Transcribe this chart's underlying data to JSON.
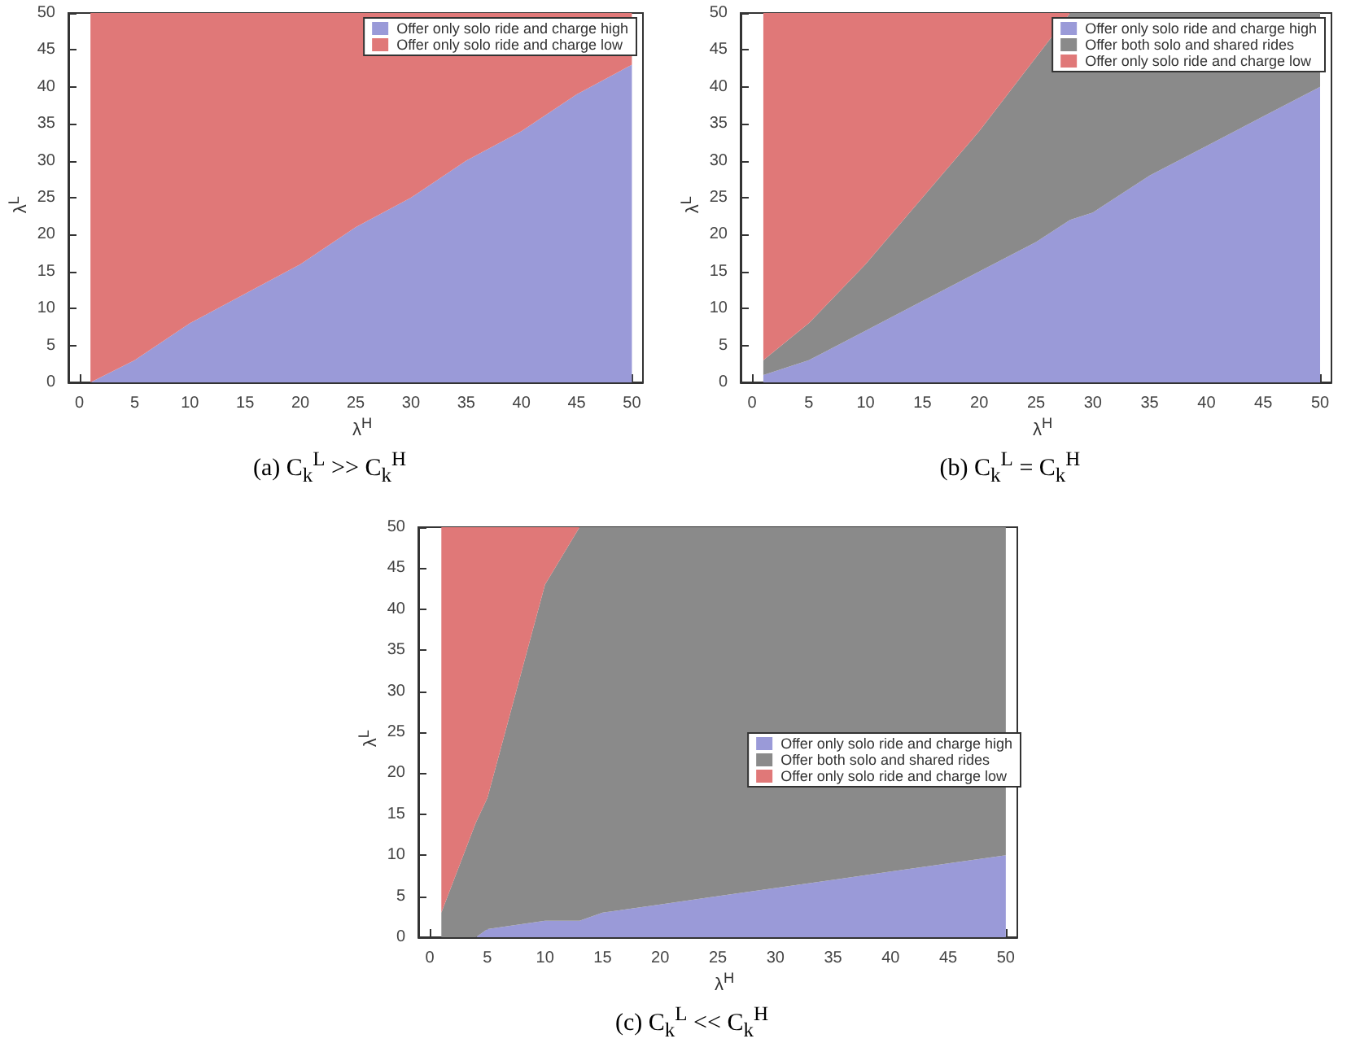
{
  "chart_data": [
    {
      "type": "area",
      "stacked": true,
      "title": "(a) C$_{k}$$^{L}$ >> C$_{k}$$^{H}$",
      "xlabel": "λ$^{H}$",
      "ylabel": "λ$^{L}$",
      "legend": "top right",
      "grid": false,
      "x": [
        1,
        5,
        10,
        15,
        20,
        25,
        30,
        35,
        40,
        45,
        50
      ],
      "xlim": [
        -1,
        51
      ],
      "ylim": [
        0,
        50
      ],
      "xticks": [
        0,
        5,
        10,
        15,
        20,
        25,
        30,
        35,
        40,
        45,
        50
      ],
      "yticks": [
        0,
        5,
        10,
        15,
        20,
        25,
        30,
        35,
        40,
        45,
        50
      ],
      "series": [
        {
          "name": "Offer only solo ride and charge high",
          "color": "#9a9ad8",
          "values": [
            0,
            3,
            8,
            12,
            16,
            21,
            25,
            30,
            34,
            39,
            43
          ]
        },
        {
          "name": "Offer only solo ride and charge low",
          "color": "#e07878",
          "values": [
            50,
            47,
            42,
            38,
            34,
            29,
            25,
            20,
            16,
            11,
            7
          ]
        }
      ]
    },
    {
      "type": "area",
      "stacked": true,
      "title": "(b) C$_{k}$$^{L}$ = C$_{k}$$^{H}$",
      "xlabel": "λ$^{H}$",
      "ylabel": "λ$^{L}$",
      "legend": "top right",
      "grid": false,
      "x": [
        1,
        5,
        10,
        15,
        20,
        25,
        28,
        30,
        35,
        40,
        45,
        50
      ],
      "xlim": [
        -1,
        51
      ],
      "ylim": [
        0,
        50
      ],
      "xticks": [
        0,
        5,
        10,
        15,
        20,
        25,
        30,
        35,
        40,
        45,
        50
      ],
      "yticks": [
        0,
        5,
        10,
        15,
        20,
        25,
        30,
        35,
        40,
        45,
        50
      ],
      "series": [
        {
          "name": "Offer only solo ride and charge high",
          "color": "#9a9ad8",
          "values": [
            1,
            3,
            7,
            11,
            15,
            19,
            22,
            23,
            28,
            32,
            36,
            40
          ]
        },
        {
          "name": "Offer both solo and shared rides",
          "color": "#8a8a8a",
          "values": [
            2,
            5,
            9,
            14,
            19,
            25,
            28,
            27,
            22,
            18,
            14,
            10
          ]
        },
        {
          "name": "Offer only solo ride and charge low",
          "color": "#e07878",
          "values": [
            47,
            42,
            34,
            25,
            16,
            6,
            0,
            0,
            0,
            0,
            0,
            0
          ]
        }
      ]
    },
    {
      "type": "area",
      "stacked": true,
      "title": "(c) C$_{k}$$^{L}$ << C$_{k}$$^{H}$",
      "xlabel": "λ$^{H}$",
      "ylabel": "λ$^{L}$",
      "legend": "right",
      "grid": false,
      "x": [
        1,
        4,
        5,
        10,
        13,
        15,
        20,
        25,
        30,
        35,
        40,
        45,
        50
      ],
      "xlim": [
        -1,
        51
      ],
      "ylim": [
        0,
        50
      ],
      "xticks": [
        0,
        5,
        10,
        15,
        20,
        25,
        30,
        35,
        40,
        45,
        50
      ],
      "yticks": [
        0,
        5,
        10,
        15,
        20,
        25,
        30,
        35,
        40,
        45,
        50
      ],
      "series": [
        {
          "name": "Offer only solo ride and charge high",
          "color": "#9a9ad8",
          "values": [
            0,
            0,
            1,
            2,
            2,
            3,
            4,
            5,
            6,
            7,
            8,
            9,
            10
          ]
        },
        {
          "name": "Offer both solo and shared rides",
          "color": "#8a8a8a",
          "values": [
            3,
            14,
            16,
            41,
            48,
            47,
            46,
            45,
            44,
            43,
            42,
            41,
            40
          ]
        },
        {
          "name": "Offer only solo ride and charge low",
          "color": "#e07878",
          "values": [
            47,
            36,
            33,
            7,
            0,
            0,
            0,
            0,
            0,
            0,
            0,
            0,
            0
          ]
        }
      ]
    }
  ]
}
